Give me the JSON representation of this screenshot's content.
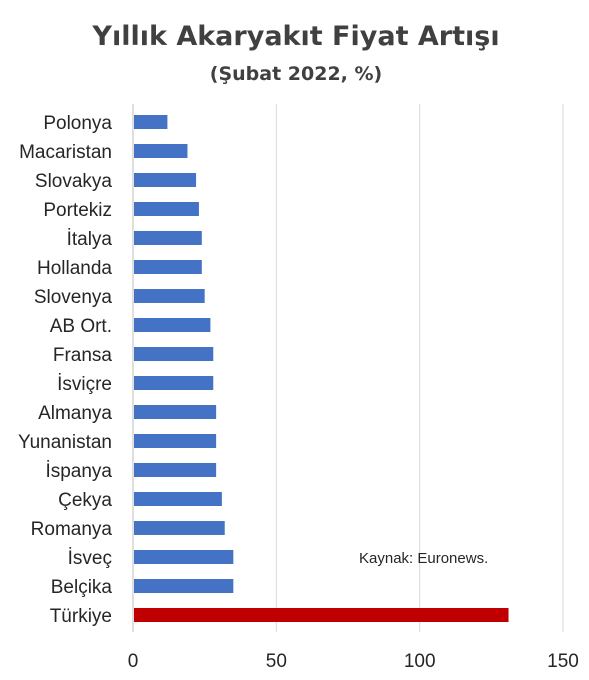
{
  "chart_data": {
    "type": "bar",
    "orientation": "horizontal",
    "title": "Yıllık Akaryakıt Fiyat Artışı",
    "subtitle": "(Şubat 2022, %)",
    "categories": [
      "Polonya",
      "Macaristan",
      "Slovakya",
      "Portekiz",
      "İtalya",
      "Hollanda",
      "Slovenya",
      "AB Ort.",
      "Fransa",
      "İsviçre",
      "Almanya",
      "Yunanistan",
      "İspanya",
      "Çekya",
      "Romanya",
      "İsveç",
      "Belçika",
      "Türkiye"
    ],
    "values": [
      12,
      19,
      22,
      23,
      24,
      24,
      25,
      27,
      28,
      28,
      29,
      29,
      29,
      31,
      32,
      35,
      35,
      131
    ],
    "xlim": [
      0,
      150
    ],
    "xticks": [
      0,
      50,
      100,
      150
    ],
    "grid": true,
    "bar_color": "#4472C4",
    "highlight_color": "#C00000",
    "highlight_category": "Türkiye",
    "annotation": "Kaynak: Euronews."
  }
}
